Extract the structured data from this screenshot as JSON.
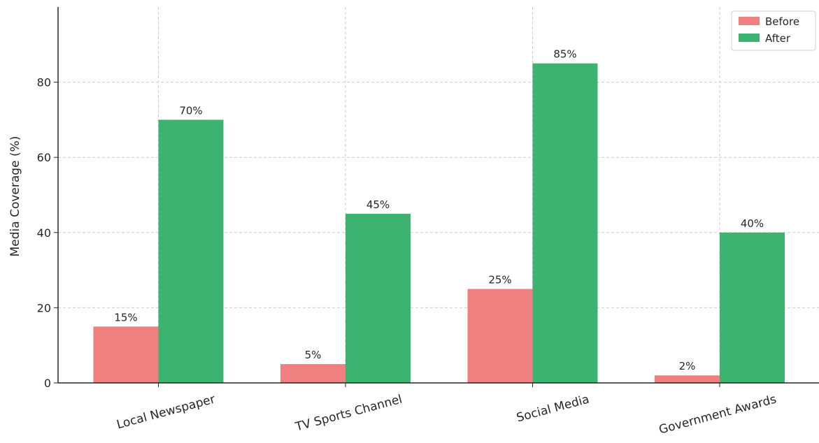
{
  "chart_data": {
    "type": "bar",
    "title": "",
    "xlabel": "",
    "ylabel": "Media Coverage (%)",
    "ylim": [
      0,
      100
    ],
    "yticks": [
      0,
      20,
      40,
      60,
      80
    ],
    "grid": true,
    "legend_position": "top-right",
    "categories": [
      "Local Newspaper",
      "TV Sports Channel",
      "Social Media",
      "Government Awards"
    ],
    "series": [
      {
        "name": "Before",
        "color": "#f08080",
        "values": [
          15,
          5,
          25,
          2
        ],
        "labels": [
          "15%",
          "5%",
          "25%",
          "2%"
        ]
      },
      {
        "name": "After",
        "color": "#3cb371",
        "values": [
          70,
          45,
          85,
          40
        ],
        "labels": [
          "70%",
          "45%",
          "85%",
          "40%"
        ]
      }
    ]
  }
}
